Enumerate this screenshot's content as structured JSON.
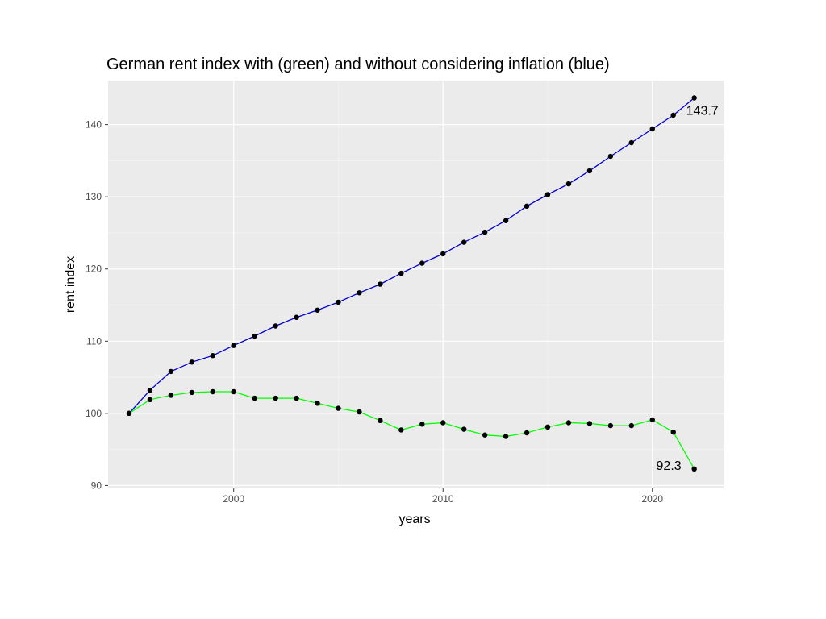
{
  "chart_data": {
    "type": "line",
    "title": "German rent index with (green) and without considering inflation (blue)",
    "xlabel": "years",
    "ylabel": "rent index",
    "xlim": [
      1994,
      2023.4
    ],
    "ylim": [
      89.6,
      146.1
    ],
    "x_ticks": [
      2000,
      2010,
      2020
    ],
    "y_ticks": [
      90,
      100,
      110,
      120,
      130,
      140
    ],
    "x_tick_labels": [
      "2000",
      "2010",
      "2020"
    ],
    "y_tick_labels": [
      "90",
      "100",
      "110",
      "120",
      "130",
      "140"
    ],
    "grid": true,
    "legend": "none",
    "x": [
      1995,
      1996,
      1997,
      1998,
      1999,
      2000,
      2001,
      2002,
      2003,
      2004,
      2005,
      2006,
      2007,
      2008,
      2009,
      2010,
      2011,
      2012,
      2013,
      2014,
      2015,
      2016,
      2017,
      2018,
      2019,
      2020,
      2021,
      2022
    ],
    "series": [
      {
        "color": "#0000cc",
        "values": [
          100.0,
          103.2,
          105.8,
          107.1,
          108.0,
          109.4,
          110.7,
          112.1,
          113.3,
          114.3,
          115.4,
          116.7,
          117.9,
          119.4,
          120.8,
          122.1,
          123.7,
          125.1,
          126.7,
          128.7,
          130.3,
          131.8,
          133.6,
          135.6,
          137.5,
          139.4,
          141.3,
          143.7
        ]
      },
      {
        "color": "#00ff00",
        "values": [
          100.0,
          101.9,
          102.5,
          102.9,
          103.0,
          103.0,
          102.1,
          102.1,
          102.1,
          101.4,
          100.7,
          100.2,
          99.0,
          97.7,
          98.5,
          98.7,
          97.8,
          97.0,
          96.8,
          97.3,
          98.1,
          98.7,
          98.6,
          98.3,
          98.3,
          99.1,
          97.4,
          92.3
        ]
      }
    ],
    "annotations": [
      {
        "text": "143.7",
        "x": 2022,
        "y": 143.7
      },
      {
        "text": "92.3",
        "x": 2022,
        "y": 92.3
      }
    ]
  }
}
